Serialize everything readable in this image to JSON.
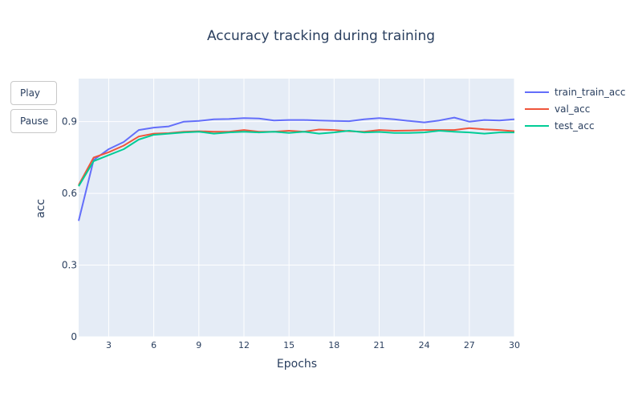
{
  "controls": {
    "play_label": "Play",
    "pause_label": "Pause"
  },
  "chart_data": {
    "type": "line",
    "title": "Accuracy tracking during training",
    "xlabel": "Epochs",
    "ylabel": "acc",
    "xlim": [
      1,
      30
    ],
    "ylim": [
      0,
      1.08
    ],
    "xticks": [
      3,
      6,
      9,
      12,
      15,
      18,
      21,
      24,
      27,
      30
    ],
    "yticks": [
      0,
      0.3,
      0.6,
      0.9
    ],
    "grid": true,
    "legend_position": "top-right",
    "x": [
      1,
      2,
      3,
      4,
      5,
      6,
      7,
      8,
      9,
      10,
      11,
      12,
      13,
      14,
      15,
      16,
      17,
      18,
      19,
      20,
      21,
      22,
      23,
      24,
      25,
      26,
      27,
      28,
      29,
      30
    ],
    "series": [
      {
        "name": "train_train_acc",
        "color": "#636efa",
        "values": [
          0.485,
          0.74,
          0.785,
          0.815,
          0.865,
          0.875,
          0.88,
          0.9,
          0.903,
          0.91,
          0.911,
          0.915,
          0.913,
          0.905,
          0.907,
          0.907,
          0.905,
          0.903,
          0.902,
          0.91,
          0.915,
          0.91,
          0.903,
          0.897,
          0.905,
          0.917,
          0.9,
          0.907,
          0.905,
          0.91
        ]
      },
      {
        "name": "val_acc",
        "color": "#ef553b",
        "values": [
          0.635,
          0.75,
          0.772,
          0.8,
          0.838,
          0.85,
          0.852,
          0.858,
          0.86,
          0.858,
          0.858,
          0.865,
          0.858,
          0.858,
          0.862,
          0.858,
          0.867,
          0.865,
          0.86,
          0.858,
          0.865,
          0.862,
          0.863,
          0.865,
          0.865,
          0.865,
          0.873,
          0.868,
          0.865,
          0.86
        ]
      },
      {
        "name": "test_acc",
        "color": "#00cc96",
        "values": [
          0.63,
          0.735,
          0.76,
          0.785,
          0.825,
          0.845,
          0.85,
          0.855,
          0.858,
          0.85,
          0.855,
          0.858,
          0.855,
          0.858,
          0.853,
          0.858,
          0.85,
          0.855,
          0.862,
          0.855,
          0.857,
          0.853,
          0.853,
          0.855,
          0.862,
          0.858,
          0.855,
          0.85,
          0.855,
          0.855
        ]
      }
    ]
  }
}
